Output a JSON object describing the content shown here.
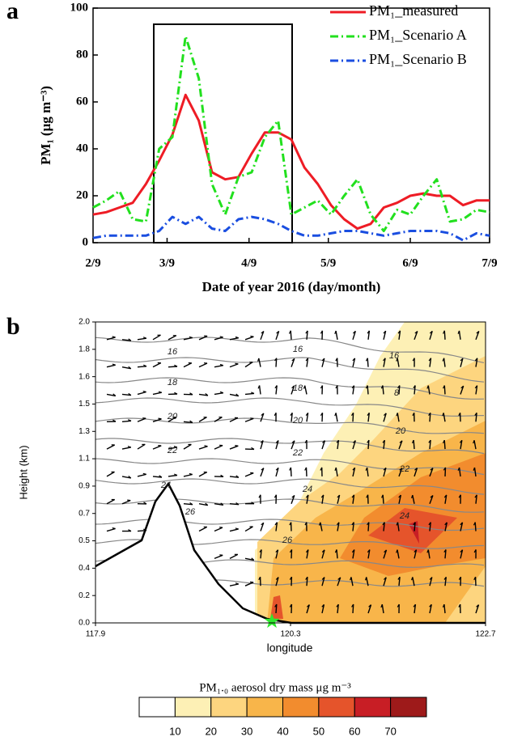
{
  "chart_data": [
    {
      "type": "line",
      "panel_label": "a",
      "xlabel": "Date of year 2016 (day/month)",
      "ylabel": "PM₁ (μg m⁻³)",
      "x": [
        0,
        5,
        10,
        15,
        20,
        25,
        30,
        35,
        40,
        45,
        50,
        55,
        60,
        65,
        70,
        75,
        80,
        85,
        90,
        95,
        100,
        105,
        110,
        115,
        120,
        125,
        130,
        135,
        140,
        145,
        150
      ],
      "xlim": [
        0,
        150
      ],
      "xticks": [
        {
          "value": 0,
          "label": "2/9"
        },
        {
          "value": 28,
          "label": "3/9"
        },
        {
          "value": 59,
          "label": "4/9"
        },
        {
          "value": 89,
          "label": "5/9"
        },
        {
          "value": 120,
          "label": "6/9"
        },
        {
          "value": 150,
          "label": "7/9"
        }
      ],
      "ylim": [
        0,
        100
      ],
      "yticks": [
        0,
        20,
        40,
        60,
        80,
        100
      ],
      "legend": "upper right",
      "series": [
        {
          "name": "PM₁_measured",
          "color": "#ee1c25",
          "style": "solid",
          "values": [
            12,
            13,
            15,
            17,
            25,
            35,
            46,
            63,
            52,
            30,
            27,
            28,
            38,
            47,
            47,
            44,
            32,
            25,
            16,
            10,
            6,
            8,
            15,
            17,
            20,
            21,
            20,
            20,
            16,
            18,
            18
          ]
        },
        {
          "name": "PM₁_Scenario A",
          "color": "#22e01e",
          "style": "dashdot",
          "values": [
            15,
            18,
            22,
            10,
            9,
            40,
            45,
            88,
            70,
            25,
            12,
            28,
            30,
            45,
            52,
            12,
            15,
            18,
            12,
            20,
            27,
            12,
            5,
            14,
            12,
            20,
            27,
            9,
            10,
            14,
            13
          ]
        },
        {
          "name": "PM₁_Scenario B",
          "color": "#1a4ee0",
          "style": "dashdot",
          "values": [
            2,
            3,
            3,
            3,
            3,
            5,
            11,
            8,
            11,
            6,
            5,
            10,
            11,
            10,
            8,
            5,
            3,
            3,
            4,
            5,
            5,
            4,
            3,
            4,
            5,
            5,
            5,
            4,
            1,
            4,
            3
          ]
        }
      ]
    },
    {
      "type": "contour",
      "panel_label": "b",
      "xlabel": "longitude",
      "ylabel": "Height (km)",
      "xlim": [
        117.9,
        122.7
      ],
      "xticks": [
        117.9,
        120.3,
        122.7
      ],
      "y_levels": [
        "0.0",
        "0.2",
        "0.4",
        "0.5",
        "0.7",
        "0.9",
        "1.1",
        "1.3",
        "1.5",
        "1.6",
        "1.8",
        "2.0"
      ],
      "contour_labels": [
        16,
        16,
        16,
        18,
        18,
        8,
        20,
        20,
        20,
        22,
        22,
        22,
        24,
        24,
        24,
        26,
        26
      ],
      "colorbar": {
        "title": "PM₁.₀ aerosol dry mass μg m⁻³",
        "ticks": [
          10,
          20,
          30,
          40,
          50,
          60,
          70
        ],
        "colors": [
          "#ffffff",
          "#fdf0b5",
          "#fdd57f",
          "#f8b54a",
          "#f28c2e",
          "#e5542b",
          "#c81e25",
          "#9e1a1a"
        ]
      }
    }
  ]
}
